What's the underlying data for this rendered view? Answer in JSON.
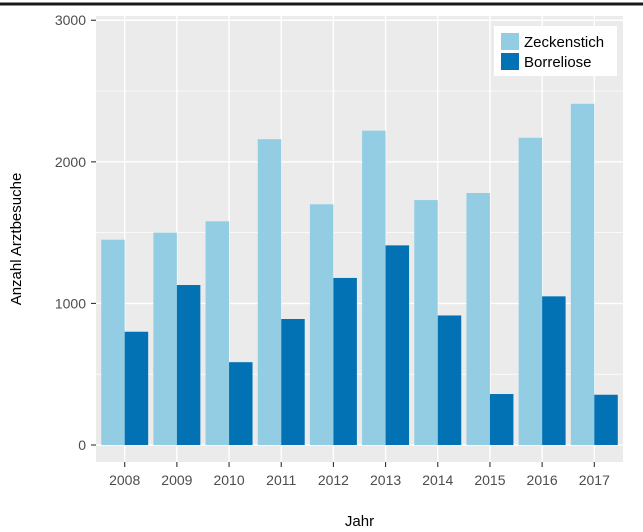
{
  "chart_data": {
    "type": "bar",
    "title": "",
    "xlabel": "Jahr",
    "ylabel": "Anzahl Arztbesuche",
    "categories": [
      "2008",
      "2009",
      "2010",
      "2011",
      "2012",
      "2013",
      "2014",
      "2015",
      "2016",
      "2017"
    ],
    "series": [
      {
        "name": "Zeckenstich",
        "color": "#92cde3",
        "values": [
          1450,
          1500,
          1580,
          2160,
          1700,
          2220,
          1730,
          1780,
          2170,
          2410
        ]
      },
      {
        "name": "Borreliose",
        "color": "#0272b5",
        "values": [
          800,
          1130,
          585,
          890,
          1180,
          1410,
          915,
          360,
          1050,
          355
        ]
      }
    ],
    "ylim": [
      -120,
      3030
    ],
    "yticks": [
      0,
      1000,
      2000,
      3000
    ],
    "ytick_labels": [
      "0",
      "1000",
      "2000",
      "3000"
    ],
    "grid": true,
    "legend_position": "top-right",
    "panel_color": "#ebebeb",
    "grid_color": "#ffffff"
  }
}
